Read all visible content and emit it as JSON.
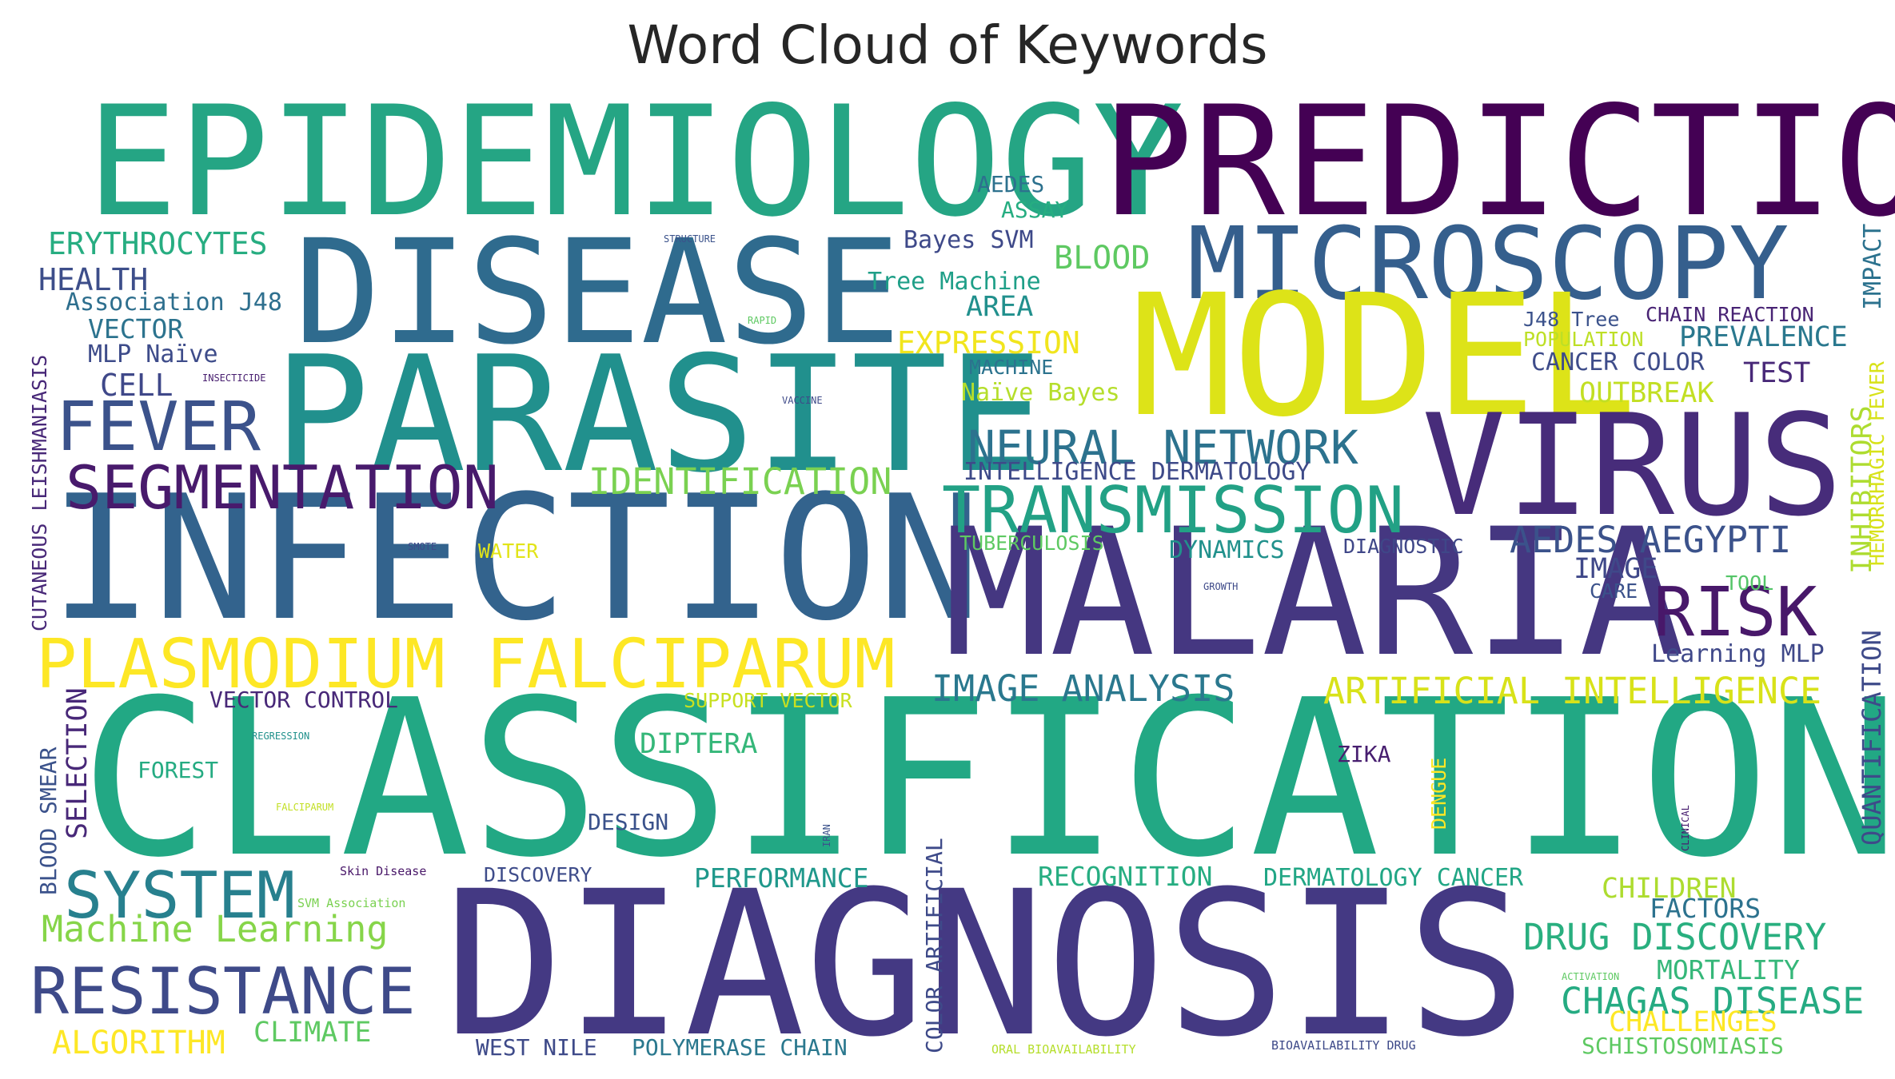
{
  "title": "Word Cloud of Keywords",
  "palette": {
    "purple_dark": "#440154",
    "indigo": "#472d7b",
    "blue": "#3b528b",
    "steel": "#2c728e",
    "teal": "#21918c",
    "green": "#28ae80",
    "lime": "#5ec962",
    "yellowgreen": "#addc30",
    "yellow": "#fde725"
  },
  "words": [
    {
      "text": "EPIDEMIOLOGY",
      "color": "#25a584",
      "rot": 0
    },
    {
      "text": "PREDICTION",
      "color": "#440154",
      "rot": 0
    },
    {
      "text": "DISEASE",
      "color": "#2f6b8e",
      "rot": 0
    },
    {
      "text": "MICROSCOPY",
      "color": "#355f8d",
      "rot": 0
    },
    {
      "text": "MODEL",
      "color": "#dde318",
      "rot": 0
    },
    {
      "text": "PARASITE",
      "color": "#21908d",
      "rot": 0
    },
    {
      "text": "VIRUS",
      "color": "#472c7a",
      "rot": 0
    },
    {
      "text": "INFECTION",
      "color": "#33638d",
      "rot": 0
    },
    {
      "text": "MALARIA",
      "color": "#453781",
      "rot": 0
    },
    {
      "text": "CLASSIFICATION",
      "color": "#22a884",
      "rot": 0
    },
    {
      "text": "DIAGNOSIS",
      "color": "#443983",
      "rot": 0
    },
    {
      "text": "FEVER",
      "color": "#3b528b",
      "rot": 0
    },
    {
      "text": "SEGMENTATION",
      "color": "#481a6c",
      "rot": 0
    },
    {
      "text": "PLASMODIUM FALCIPARUM",
      "color": "#fde725",
      "rot": 0
    },
    {
      "text": "NEURAL NETWORK",
      "color": "#2c728e",
      "rot": 0
    },
    {
      "text": "TRANSMISSION",
      "color": "#22a185",
      "rot": 0
    },
    {
      "text": "RESISTANCE",
      "color": "#3e4a89",
      "rot": 0
    },
    {
      "text": "SYSTEM",
      "color": "#27808e",
      "rot": 0
    },
    {
      "text": "RISK",
      "color": "#48186a",
      "rot": 0
    },
    {
      "text": "IDENTIFICATION",
      "color": "#7ad151",
      "rot": 0
    },
    {
      "text": "AEDES AEGYPTI",
      "color": "#3b528b",
      "rot": 0
    },
    {
      "text": "ARTIFICIAL INTELLIGENCE",
      "color": "#d8e219",
      "rot": 0
    },
    {
      "text": "IMAGE ANALYSIS",
      "color": "#2a788e",
      "rot": 0
    },
    {
      "text": "Machine Learning",
      "color": "#86d549",
      "rot": 0
    },
    {
      "text": "DRUG DISCOVERY",
      "color": "#29af7f",
      "rot": 0
    },
    {
      "text": "CHAGAS DISEASE",
      "color": "#25ab82",
      "rot": 0
    },
    {
      "text": "ERYTHROCYTES",
      "color": "#27ad81",
      "rot": 0
    },
    {
      "text": "HEALTH",
      "color": "#3d4e8a",
      "rot": 0
    },
    {
      "text": "Association J48",
      "color": "#2e6f8e",
      "rot": 0
    },
    {
      "text": "VECTOR",
      "color": "#2c738e",
      "rot": 0
    },
    {
      "text": "MLP Naïve",
      "color": "#3e4c8a",
      "rot": 0
    },
    {
      "text": "CELL",
      "color": "#3f4889",
      "rot": 0
    },
    {
      "text": "AEDES",
      "color": "#2d718e",
      "rot": 0
    },
    {
      "text": "ASSAY",
      "color": "#26ad81",
      "rot": 0
    },
    {
      "text": "Bayes SVM",
      "color": "#3e4989",
      "rot": 0
    },
    {
      "text": "BLOOD",
      "color": "#5ec962",
      "rot": 0
    },
    {
      "text": "Tree Machine",
      "color": "#1f9f88",
      "rot": 0
    },
    {
      "text": "AREA",
      "color": "#21908d",
      "rot": 0
    },
    {
      "text": "EXPRESSION",
      "color": "#f1e51d",
      "rot": 0
    },
    {
      "text": "MACHINE",
      "color": "#2c738e",
      "rot": 0
    },
    {
      "text": "Naïve Bayes",
      "color": "#b5de2b",
      "rot": 0
    },
    {
      "text": "INTELLIGENCE DERMATOLOGY",
      "color": "#3e4a89",
      "rot": 0
    },
    {
      "text": "TUBERCULOSIS",
      "color": "#5ec962",
      "rot": 0
    },
    {
      "text": "DYNAMICS",
      "color": "#21918c",
      "rot": 0
    },
    {
      "text": "DIAGNOSTIC",
      "color": "#3f4788",
      "rot": 0
    },
    {
      "text": "WATER",
      "color": "#e2e418",
      "rot": 0
    },
    {
      "text": "J48 Tree",
      "color": "#3b528b",
      "rot": 0
    },
    {
      "text": "CHAIN REACTION",
      "color": "#482374",
      "rot": 0
    },
    {
      "text": "POPULATION",
      "color": "#bddf26",
      "rot": 0
    },
    {
      "text": "PREVALENCE",
      "color": "#2a788e",
      "rot": 0
    },
    {
      "text": "CANCER COLOR",
      "color": "#3e4c8a",
      "rot": 0
    },
    {
      "text": "TEST",
      "color": "#482878",
      "rot": 0
    },
    {
      "text": "OUTBREAK",
      "color": "#c2df23",
      "rot": 0
    },
    {
      "text": "IMAGE",
      "color": "#3f4889",
      "rot": 0
    },
    {
      "text": "CARE",
      "color": "#3b528b",
      "rot": 0
    },
    {
      "text": "TOOL",
      "color": "#54c568",
      "rot": 0
    },
    {
      "text": "Learning MLP",
      "color": "#3f4889",
      "rot": 0
    },
    {
      "text": "VECTOR CONTROL",
      "color": "#482878",
      "rot": 0
    },
    {
      "text": "SUPPORT VECTOR",
      "color": "#c8e020",
      "rot": 0
    },
    {
      "text": "DIPTERA",
      "color": "#35b779",
      "rot": 0
    },
    {
      "text": "FOREST",
      "color": "#25ab82",
      "rot": 0
    },
    {
      "text": "ZIKA",
      "color": "#481f70",
      "rot": 0
    },
    {
      "text": "DESIGN",
      "color": "#3b528b",
      "rot": 0
    },
    {
      "text": "DISCOVERY",
      "color": "#3e4c8a",
      "rot": 0
    },
    {
      "text": "PERFORMANCE",
      "color": "#1f988b",
      "rot": 0
    },
    {
      "text": "RECOGNITION",
      "color": "#26ad81",
      "rot": 0
    },
    {
      "text": "DERMATOLOGY CANCER",
      "color": "#21a685",
      "rot": 0
    },
    {
      "text": "CHILDREN",
      "color": "#addc30",
      "rot": 0
    },
    {
      "text": "FACTORS",
      "color": "#2c728e",
      "rot": 0
    },
    {
      "text": "MORTALITY",
      "color": "#35b779",
      "rot": 0
    },
    {
      "text": "CHALLENGES",
      "color": "#fde725",
      "rot": 0
    },
    {
      "text": "SCHISTOSOMIASIS",
      "color": "#5ec962",
      "rot": 0
    },
    {
      "text": "ALGORITHM",
      "color": "#fde725",
      "rot": 0
    },
    {
      "text": "CLIMATE",
      "color": "#5ec962",
      "rot": 0
    },
    {
      "text": "WEST NILE",
      "color": "#3e4a89",
      "rot": 0
    },
    {
      "text": "POLYMERASE CHAIN",
      "color": "#2a788e",
      "rot": 0
    },
    {
      "text": "ORAL BIOAVAILABILITY",
      "color": "#b5de2b",
      "rot": 0
    },
    {
      "text": "BIOAVAILABILITY DRUG",
      "color": "#3e4a89",
      "rot": 0
    },
    {
      "text": "Skin Disease",
      "color": "#481668",
      "rot": 0
    },
    {
      "text": "SVM Association",
      "color": "#7ad151",
      "rot": 0
    },
    {
      "text": "STRUCTURE",
      "color": "#3b528b",
      "rot": 0
    },
    {
      "text": "RAPID",
      "color": "#5ec962",
      "rot": 0
    },
    {
      "text": "INSECTICIDE",
      "color": "#481f70",
      "rot": 0
    },
    {
      "text": "VACCINE",
      "color": "#3e4a89",
      "rot": 0
    },
    {
      "text": "SMOTE",
      "color": "#3e4a89",
      "rot": 0
    },
    {
      "text": "GROWTH",
      "color": "#3e4a89",
      "rot": 0
    },
    {
      "text": "REGRESSION",
      "color": "#21918c",
      "rot": 0
    },
    {
      "text": "FALCIPARUM",
      "color": "#c2df23",
      "rot": 0
    },
    {
      "text": "ACTIVATION",
      "color": "#5ec962",
      "rot": 0
    },
    {
      "text": "CUTANEOUS LEISHMANIASIS",
      "color": "#482878",
      "rot": -90
    },
    {
      "text": "BLOOD SMEAR",
      "color": "#3b528b",
      "rot": -90
    },
    {
      "text": "SELECTION",
      "color": "#482878",
      "rot": -90
    },
    {
      "text": "COLOR ARTIFICIAL",
      "color": "#3e4a89",
      "rot": -90
    },
    {
      "text": "IRAN",
      "color": "#3b528b",
      "rot": -90
    },
    {
      "text": "DENGUE",
      "color": "#fde725",
      "rot": -90
    },
    {
      "text": "CLINICAL",
      "color": "#481f70",
      "rot": -90
    },
    {
      "text": "QUANTIFICATION",
      "color": "#3e4a89",
      "rot": -90
    },
    {
      "text": "INHIBITORS",
      "color": "#addc30",
      "rot": -90
    },
    {
      "text": "HEMORRHAGIC FEVER",
      "color": "#d8e219",
      "rot": -90
    },
    {
      "text": "IMPACT",
      "color": "#2c728e",
      "rot": -90
    }
  ]
}
